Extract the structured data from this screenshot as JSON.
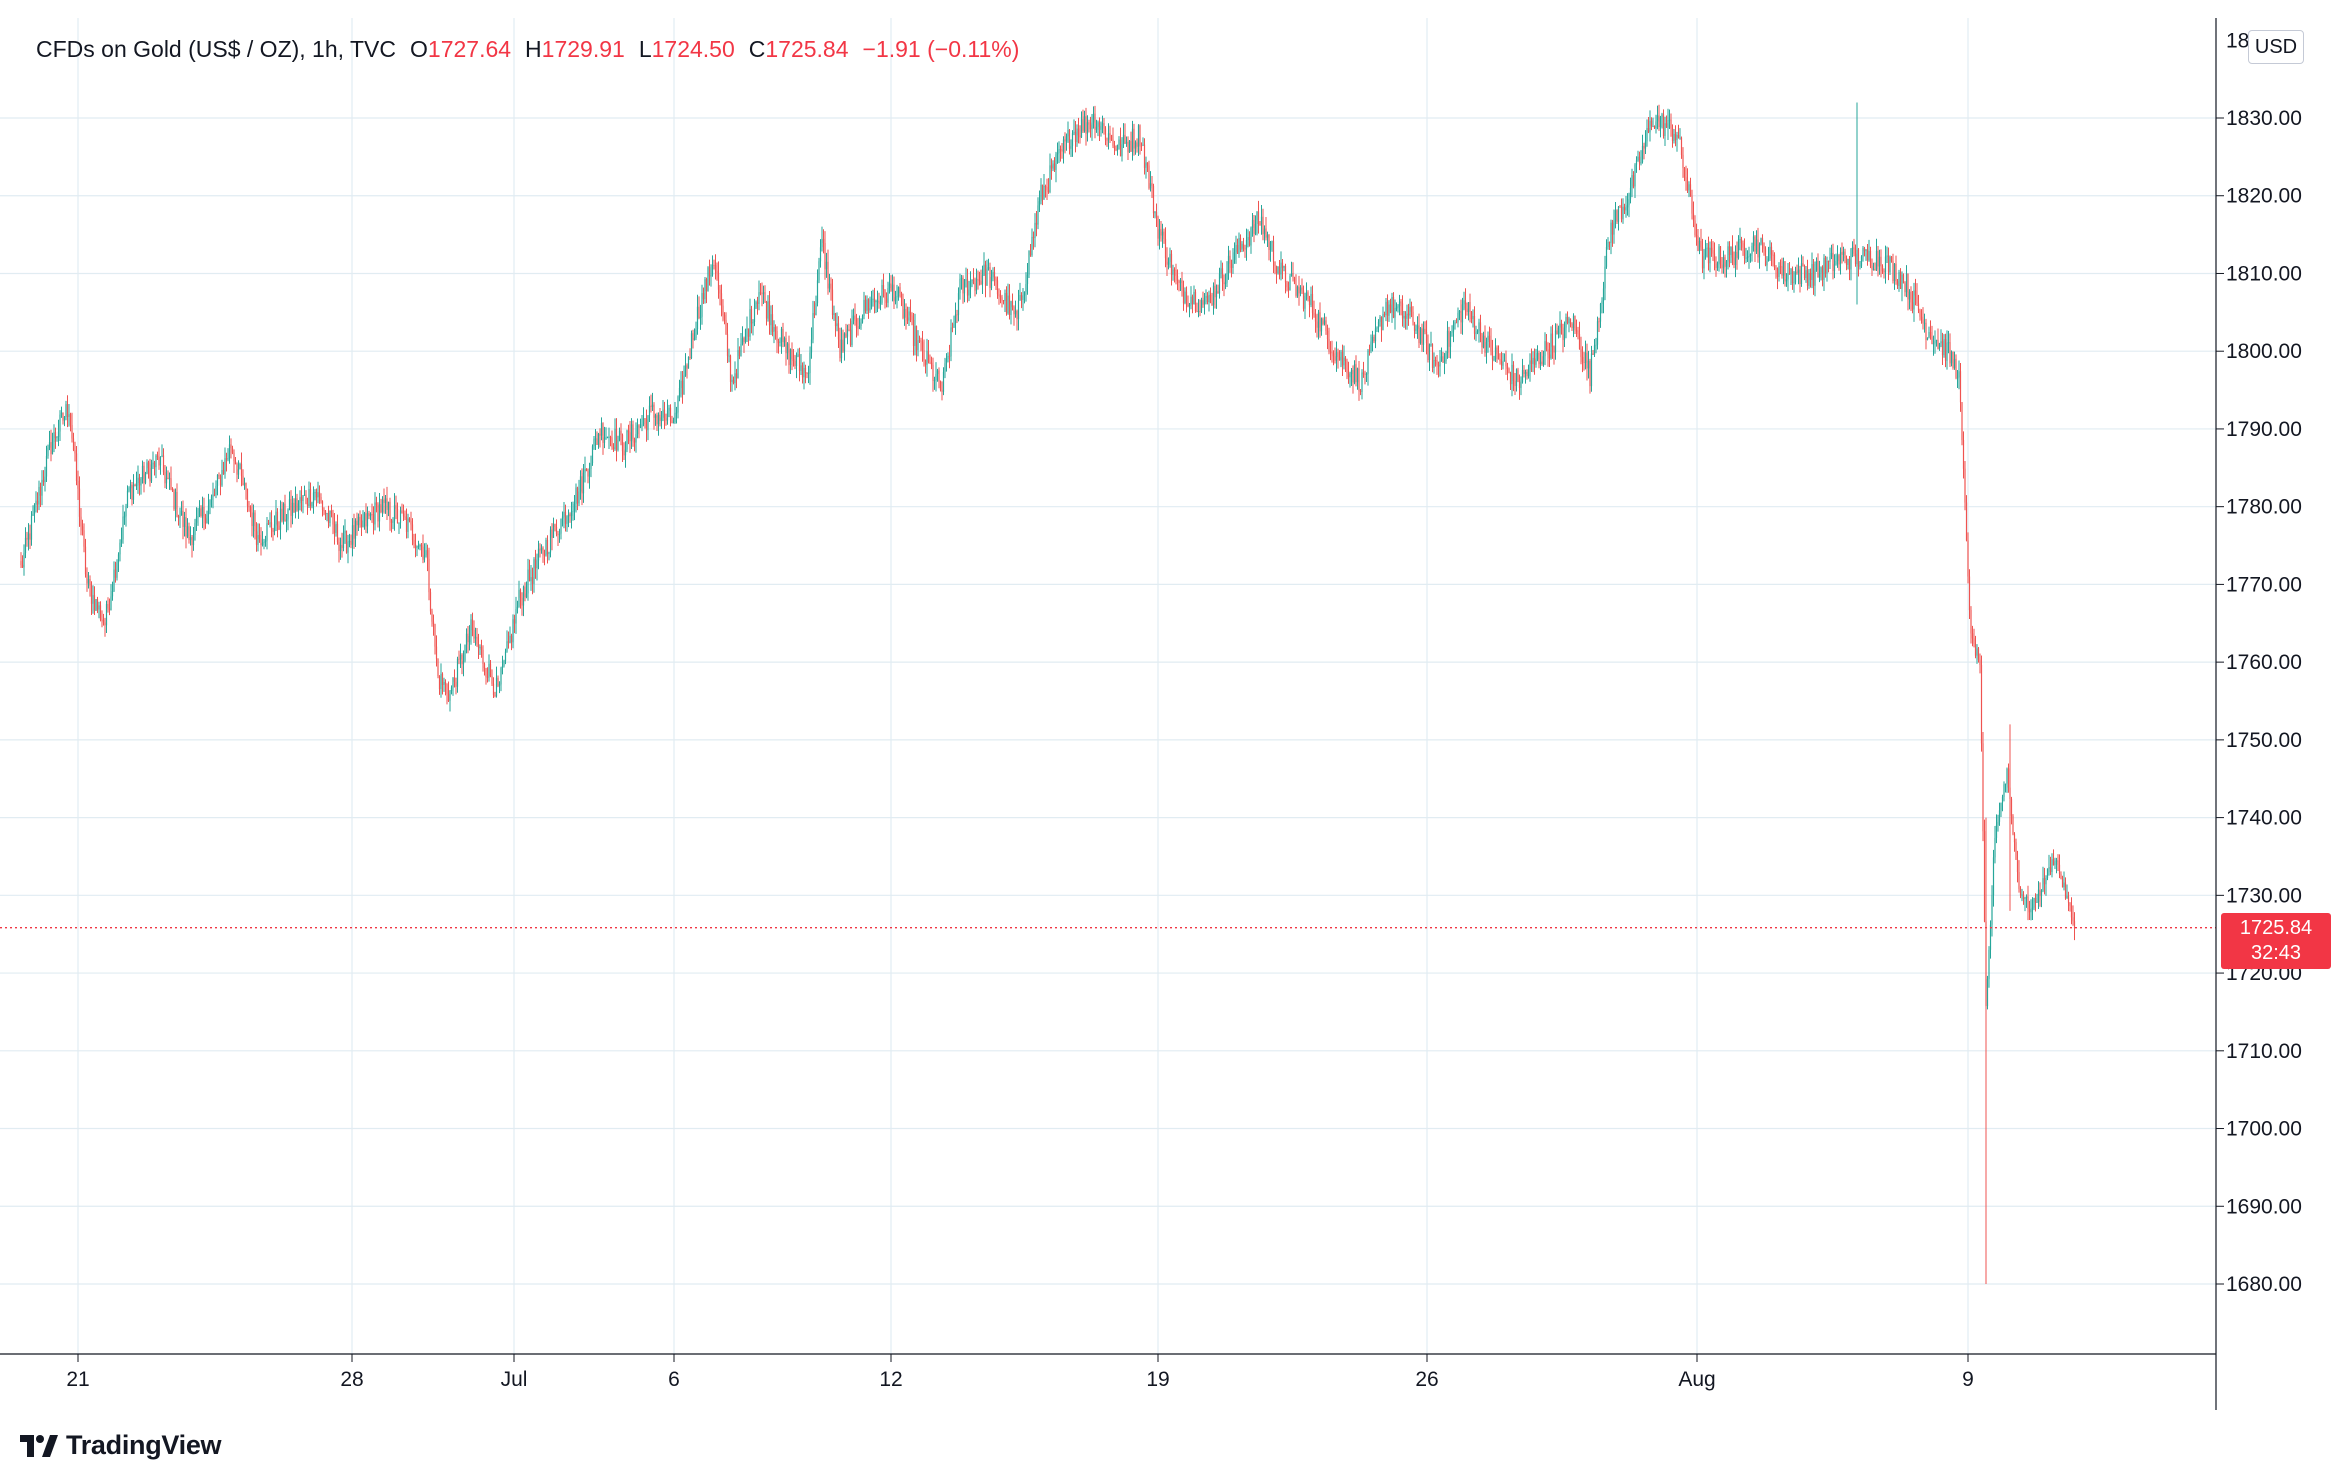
{
  "legend": {
    "symbol": "CFDs on Gold (US$ / OZ), 1h, TVC",
    "open": "1727.64",
    "high": "1729.91",
    "low": "1724.50",
    "close": "1725.84",
    "change": "−1.91 (−0.11%)",
    "open_prefix": "O",
    "high_prefix": "H",
    "low_prefix": "L",
    "close_prefix": "C"
  },
  "currency_button": "USD",
  "last_price_badge": {
    "price": "1725.84",
    "countdown": "32:43"
  },
  "brand": {
    "name": "TradingView",
    "logo": "tradingview-logo"
  },
  "colors": {
    "up": "#26a69a",
    "down": "#ef5350",
    "grid": "#e1ecf2",
    "badge": "#f23645",
    "axis": "#131722"
  },
  "chart_data": {
    "type": "candlestick",
    "timeframe": "1h",
    "ylim": [
      1672,
      1842
    ],
    "ytick_values": [
      1680,
      1690,
      1700,
      1710,
      1720,
      1730,
      1740,
      1750,
      1760,
      1770,
      1780,
      1790,
      1800,
      1810,
      1820,
      1830
    ],
    "ytick_labels": [
      "1680.00",
      "1690.00",
      "1700.00",
      "1710.00",
      "1720.00",
      "1730.00",
      "1740.00",
      "1750.00",
      "1760.00",
      "1770.00",
      "1780.00",
      "1790.00",
      "1800.00",
      "1810.00",
      "1820.00",
      "1830.00"
    ],
    "xticks": [
      "21",
      "28",
      "Jul",
      "6",
      "12",
      "19",
      "26",
      "Aug",
      "9"
    ],
    "last_price": 1725.84,
    "anchors": [
      [
        0,
        1772
      ],
      [
        20,
        1788
      ],
      [
        32,
        1793
      ],
      [
        44,
        1770
      ],
      [
        56,
        1765
      ],
      [
        72,
        1782
      ],
      [
        92,
        1786
      ],
      [
        112,
        1776
      ],
      [
        128,
        1781
      ],
      [
        140,
        1788
      ],
      [
        158,
        1776
      ],
      [
        176,
        1779
      ],
      [
        196,
        1782
      ],
      [
        214,
        1775
      ],
      [
        240,
        1780
      ],
      [
        256,
        1778
      ],
      [
        270,
        1774
      ],
      [
        278,
        1758
      ],
      [
        286,
        1756
      ],
      [
        300,
        1764
      ],
      [
        318,
        1756
      ],
      [
        332,
        1768
      ],
      [
        350,
        1775
      ],
      [
        372,
        1782
      ],
      [
        386,
        1790
      ],
      [
        402,
        1788
      ],
      [
        420,
        1792
      ],
      [
        436,
        1791
      ],
      [
        450,
        1804
      ],
      [
        462,
        1812
      ],
      [
        474,
        1796
      ],
      [
        492,
        1808
      ],
      [
        510,
        1800
      ],
      [
        524,
        1797
      ],
      [
        534,
        1814
      ],
      [
        546,
        1800
      ],
      [
        564,
        1806
      ],
      [
        582,
        1808
      ],
      [
        600,
        1800
      ],
      [
        614,
        1795
      ],
      [
        626,
        1808
      ],
      [
        644,
        1810
      ],
      [
        664,
        1804
      ],
      [
        680,
        1820
      ],
      [
        700,
        1828
      ],
      [
        716,
        1830
      ],
      [
        732,
        1826
      ],
      [
        746,
        1828
      ],
      [
        758,
        1816
      ],
      [
        772,
        1808
      ],
      [
        790,
        1806
      ],
      [
        808,
        1812
      ],
      [
        826,
        1817
      ],
      [
        840,
        1810
      ],
      [
        860,
        1806
      ],
      [
        876,
        1800
      ],
      [
        894,
        1796
      ],
      [
        910,
        1806
      ],
      [
        928,
        1804
      ],
      [
        944,
        1798
      ],
      [
        962,
        1806
      ],
      [
        980,
        1800
      ],
      [
        998,
        1796
      ],
      [
        1016,
        1800
      ],
      [
        1034,
        1804
      ],
      [
        1046,
        1797
      ],
      [
        1060,
        1816
      ],
      [
        1072,
        1820
      ],
      [
        1088,
        1830
      ],
      [
        1104,
        1828
      ],
      [
        1120,
        1812
      ],
      [
        1136,
        1812
      ],
      [
        1156,
        1814
      ],
      [
        1176,
        1810
      ],
      [
        1196,
        1810
      ],
      [
        1214,
        1812
      ],
      [
        1226,
        1812
      ],
      [
        1240,
        1812
      ],
      [
        1256,
        1809
      ],
      [
        1270,
        1803
      ],
      [
        1284,
        1800
      ],
      [
        1292,
        1797
      ],
      [
        1300,
        1763
      ],
      [
        1306,
        1760
      ],
      [
        1310,
        1715
      ],
      [
        1316,
        1738
      ],
      [
        1324,
        1746
      ],
      [
        1332,
        1731
      ],
      [
        1340,
        1728
      ],
      [
        1356,
        1735
      ],
      [
        1369,
        1726
      ]
    ],
    "spikes": [
      {
        "x": 1224,
        "h": 1832,
        "l": 1806
      },
      {
        "x": 1310,
        "h": 1740,
        "l": 1680
      },
      {
        "x": 1326,
        "h": 1752,
        "l": 1728
      }
    ]
  }
}
